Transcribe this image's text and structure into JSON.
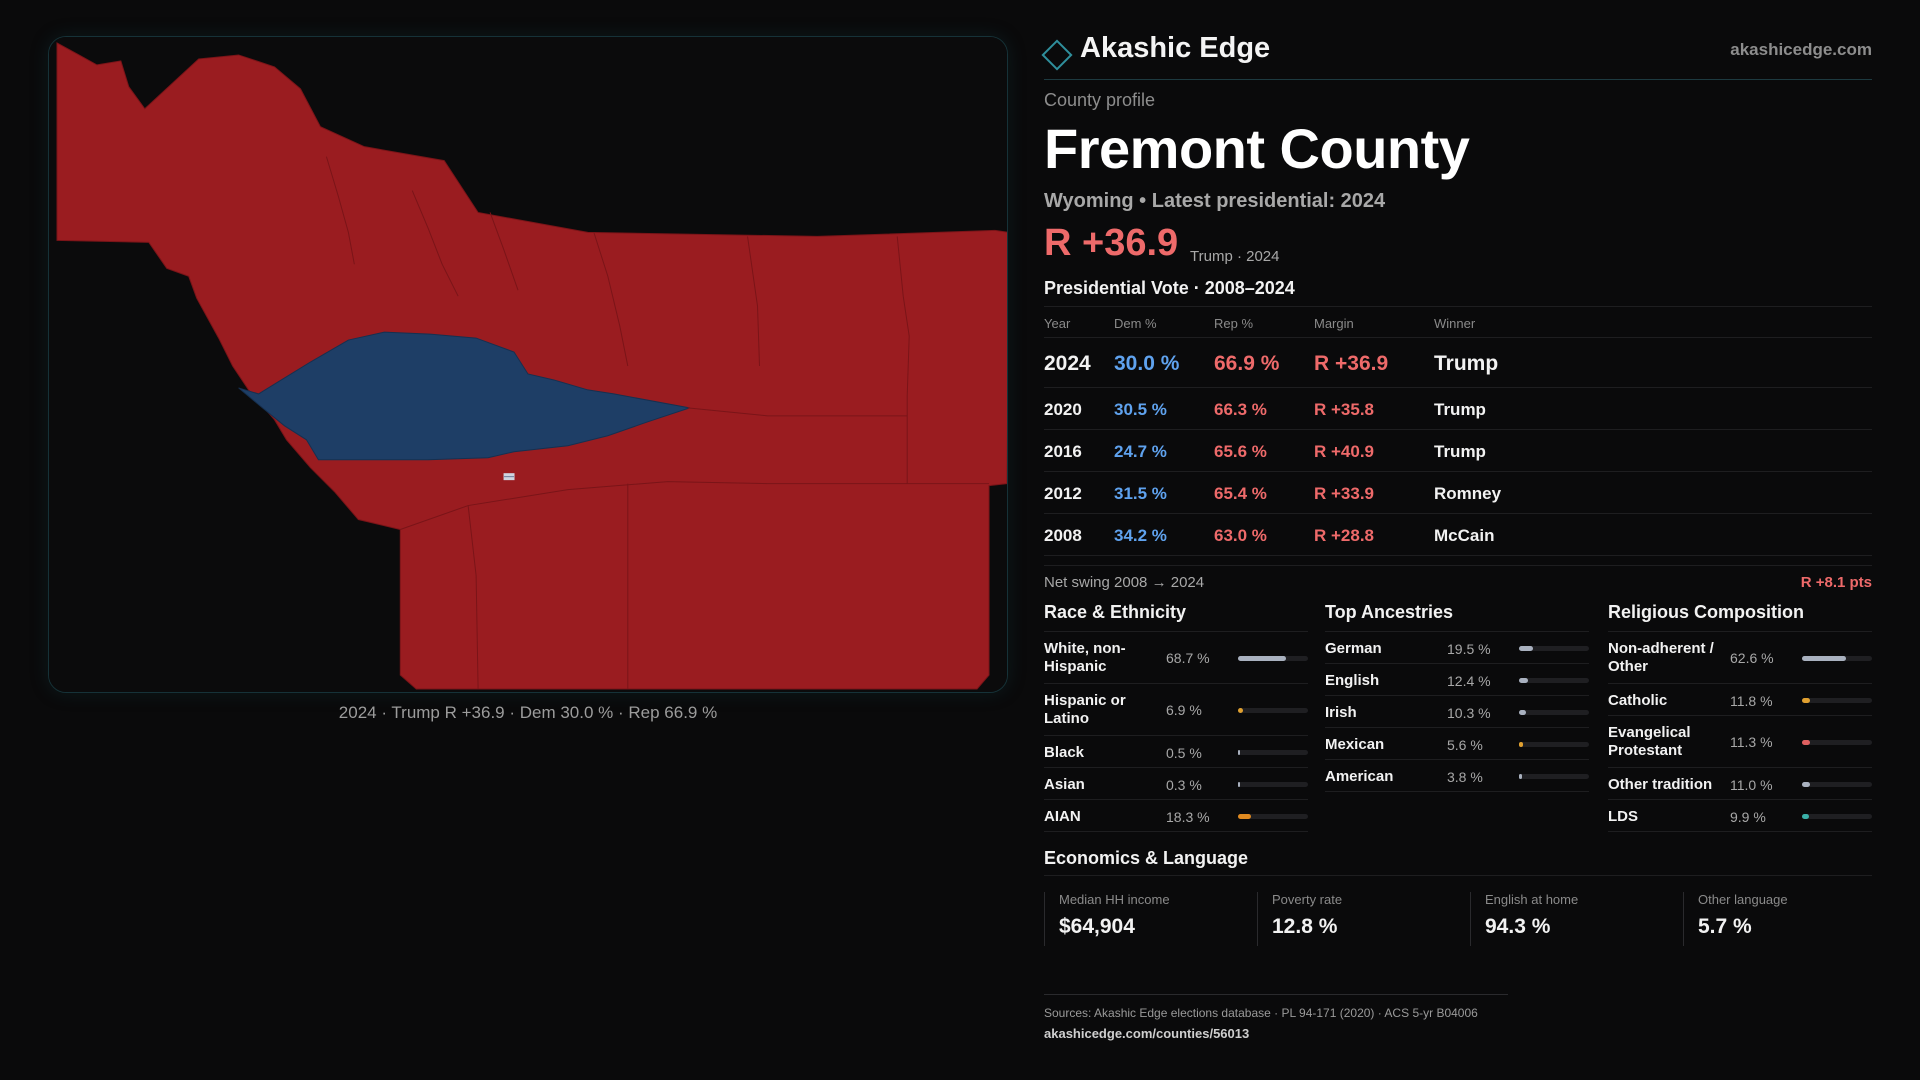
{
  "map": {
    "caption": "2024 · Trump R +36.9 · Dem 30.0 % · Rep 66.9 %",
    "colors": {
      "rep": "#9a1c20",
      "dem": "#1e3e66",
      "background": "#0b0b0c",
      "border": "#7a1418"
    }
  },
  "brand": {
    "name": "Akashic Edge",
    "url": "akashicedge.com"
  },
  "profile": {
    "eyebrow": "County profile",
    "title": "Fremont County",
    "subtitle": "Wyoming • Latest presidential: 2024",
    "margin": "R +36.9",
    "margin_note": "Trump · 2024"
  },
  "vote": {
    "title": "Presidential Vote · 2008–2024",
    "headers": {
      "year": "Year",
      "dem": "Dem %",
      "rep": "Rep %",
      "margin": "Margin",
      "winner": "Winner"
    },
    "rows": [
      {
        "year": "2024",
        "dem": "30.0 %",
        "rep": "66.9 %",
        "margin": "R +36.9",
        "winner": "Trump"
      },
      {
        "year": "2020",
        "dem": "30.5 %",
        "rep": "66.3 %",
        "margin": "R +35.8",
        "winner": "Trump"
      },
      {
        "year": "2016",
        "dem": "24.7 %",
        "rep": "65.6 %",
        "margin": "R +40.9",
        "winner": "Trump"
      },
      {
        "year": "2012",
        "dem": "31.5 %",
        "rep": "65.4 %",
        "margin": "R +33.9",
        "winner": "Romney"
      },
      {
        "year": "2008",
        "dem": "34.2 %",
        "rep": "63.0 %",
        "margin": "R +28.8",
        "winner": "McCain"
      }
    ],
    "swing_label": "Net swing 2008 → 2024",
    "swing_value": "R +8.1 pts"
  },
  "race": {
    "title": "Race & Ethnicity",
    "items": [
      {
        "label": "White, non-Hispanic",
        "pct": "68.7 %",
        "fraction": 0.687,
        "color": "#a9b1bf"
      },
      {
        "label": "Hispanic or Latino",
        "pct": "6.9 %",
        "fraction": 0.069,
        "color": "#e0a030"
      },
      {
        "label": "Black",
        "pct": "0.5 %",
        "fraction": 0.005,
        "color": "#a9b1bf"
      },
      {
        "label": "Asian",
        "pct": "0.3 %",
        "fraction": 0.003,
        "color": "#a9b1bf"
      },
      {
        "label": "AIAN",
        "pct": "18.3 %",
        "fraction": 0.183,
        "color": "#e08a20"
      }
    ]
  },
  "ancestry": {
    "title": "Top Ancestries",
    "items": [
      {
        "label": "German",
        "pct": "19.5 %",
        "fraction": 0.195,
        "color": "#a9b1bf"
      },
      {
        "label": "English",
        "pct": "12.4 %",
        "fraction": 0.124,
        "color": "#a9b1bf"
      },
      {
        "label": "Irish",
        "pct": "10.3 %",
        "fraction": 0.103,
        "color": "#a9b1bf"
      },
      {
        "label": "Mexican",
        "pct": "5.6 %",
        "fraction": 0.056,
        "color": "#e0a030"
      },
      {
        "label": "American",
        "pct": "3.8 %",
        "fraction": 0.038,
        "color": "#a9b1bf"
      }
    ]
  },
  "religion": {
    "title": "Religious Composition",
    "items": [
      {
        "label": "Non-adherent / Other",
        "pct": "62.6 %",
        "fraction": 0.626,
        "color": "#a9b1bf"
      },
      {
        "label": "Catholic",
        "pct": "11.8 %",
        "fraction": 0.118,
        "color": "#e0a030"
      },
      {
        "label": "Evangelical Protestant",
        "pct": "11.3 %",
        "fraction": 0.113,
        "color": "#e06060"
      },
      {
        "label": "Other tradition",
        "pct": "11.0 %",
        "fraction": 0.11,
        "color": "#a9b1bf"
      },
      {
        "label": "LDS",
        "pct": "9.9 %",
        "fraction": 0.099,
        "color": "#3ab0a8"
      }
    ]
  },
  "economics": {
    "title": "Economics & Language",
    "items": [
      {
        "label": "Median HH income",
        "value": "$64,904"
      },
      {
        "label": "Poverty rate",
        "value": "12.8 %"
      },
      {
        "label": "English at home",
        "value": "94.3 %"
      },
      {
        "label": "Other language",
        "value": "5.7 %"
      }
    ]
  },
  "footer": {
    "sources": "Sources: Akashic Edge elections database · PL 94-171 (2020) · ACS 5-yr B04006",
    "url": "akashicedge.com/counties/56013"
  }
}
